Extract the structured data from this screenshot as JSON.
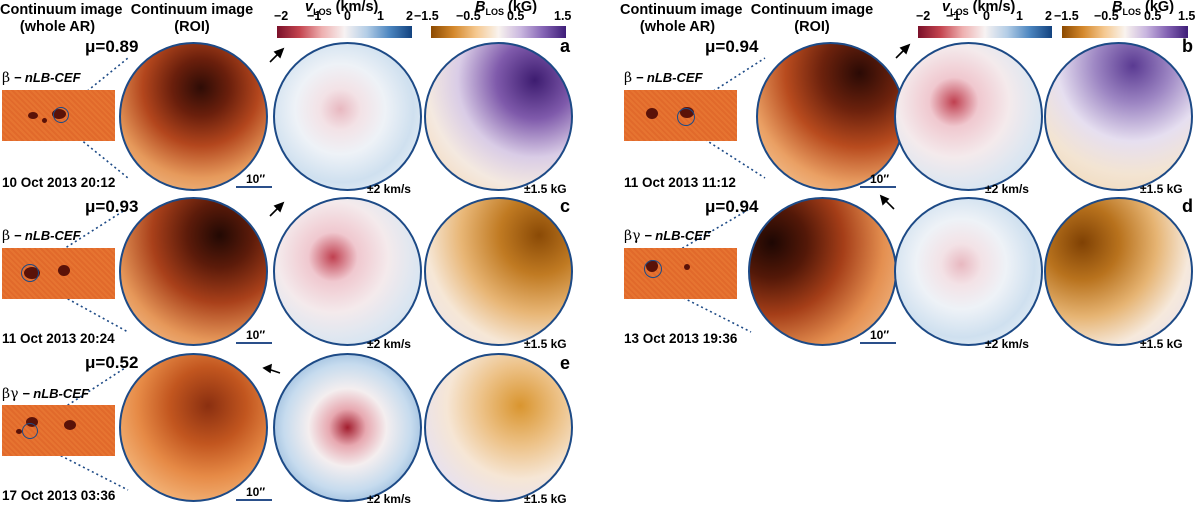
{
  "headers": {
    "whole_ar": [
      "Continuum image",
      "(whole AR)"
    ],
    "roi": [
      "Continuum image",
      "(ROI)"
    ]
  },
  "colorbars": {
    "vlos": {
      "symbol": "v",
      "subscript": "LOS",
      "unit": "(km/s)",
      "ticks": [
        "−2",
        "−1",
        "0",
        "1",
        "2"
      ],
      "colors": [
        "#7a1029",
        "#f7f2f2",
        "#12427f"
      ]
    },
    "blos": {
      "symbol": "B",
      "subscript": "LOS",
      "unit": "(kG)",
      "ticks": [
        "−1.5",
        "−0.5",
        "0.5",
        "1.5"
      ],
      "colors": [
        "#8c4a00",
        "#f9f3ee",
        "#3e1d78"
      ]
    }
  },
  "panels": {
    "a": {
      "letter": "a",
      "mu": "μ=0.89",
      "type_symbol": "β",
      "type_name": " − nLB-CEF",
      "date": "10 Oct 2013 20:12",
      "scale_label": "10′′",
      "vlos_range": "±2 km/s",
      "blos_range": "±1.5 kG"
    },
    "b": {
      "letter": "b",
      "mu": "μ=0.94",
      "type_symbol": "β",
      "type_name": " − nLB-CEF",
      "date": "11 Oct 2013 11:12",
      "scale_label": "10′′",
      "vlos_range": "±2 km/s",
      "blos_range": "±1.5 kG"
    },
    "c": {
      "letter": "c",
      "mu": "μ=0.93",
      "type_symbol": "β",
      "type_name": " − nLB-CEF",
      "date": "11 Oct 2013 20:24",
      "scale_label": "10′′",
      "vlos_range": "±2 km/s",
      "blos_range": "±1.5 kG"
    },
    "d": {
      "letter": "d",
      "mu": "μ=0.94",
      "type_symbol": "βγ",
      "type_name": " − nLB-CEF",
      "date": "13 Oct 2013 19:36",
      "scale_label": "10′′",
      "vlos_range": "±2 km/s",
      "blos_range": "±1.5 kG"
    },
    "e": {
      "letter": "e",
      "mu": "μ=0.52",
      "type_symbol": "βγ",
      "type_name": " − nLB-CEF",
      "date": "17 Oct 2013 03:36",
      "scale_label": "10′′",
      "vlos_range": "±2 km/s",
      "blos_range": "±1.5 kG"
    }
  }
}
